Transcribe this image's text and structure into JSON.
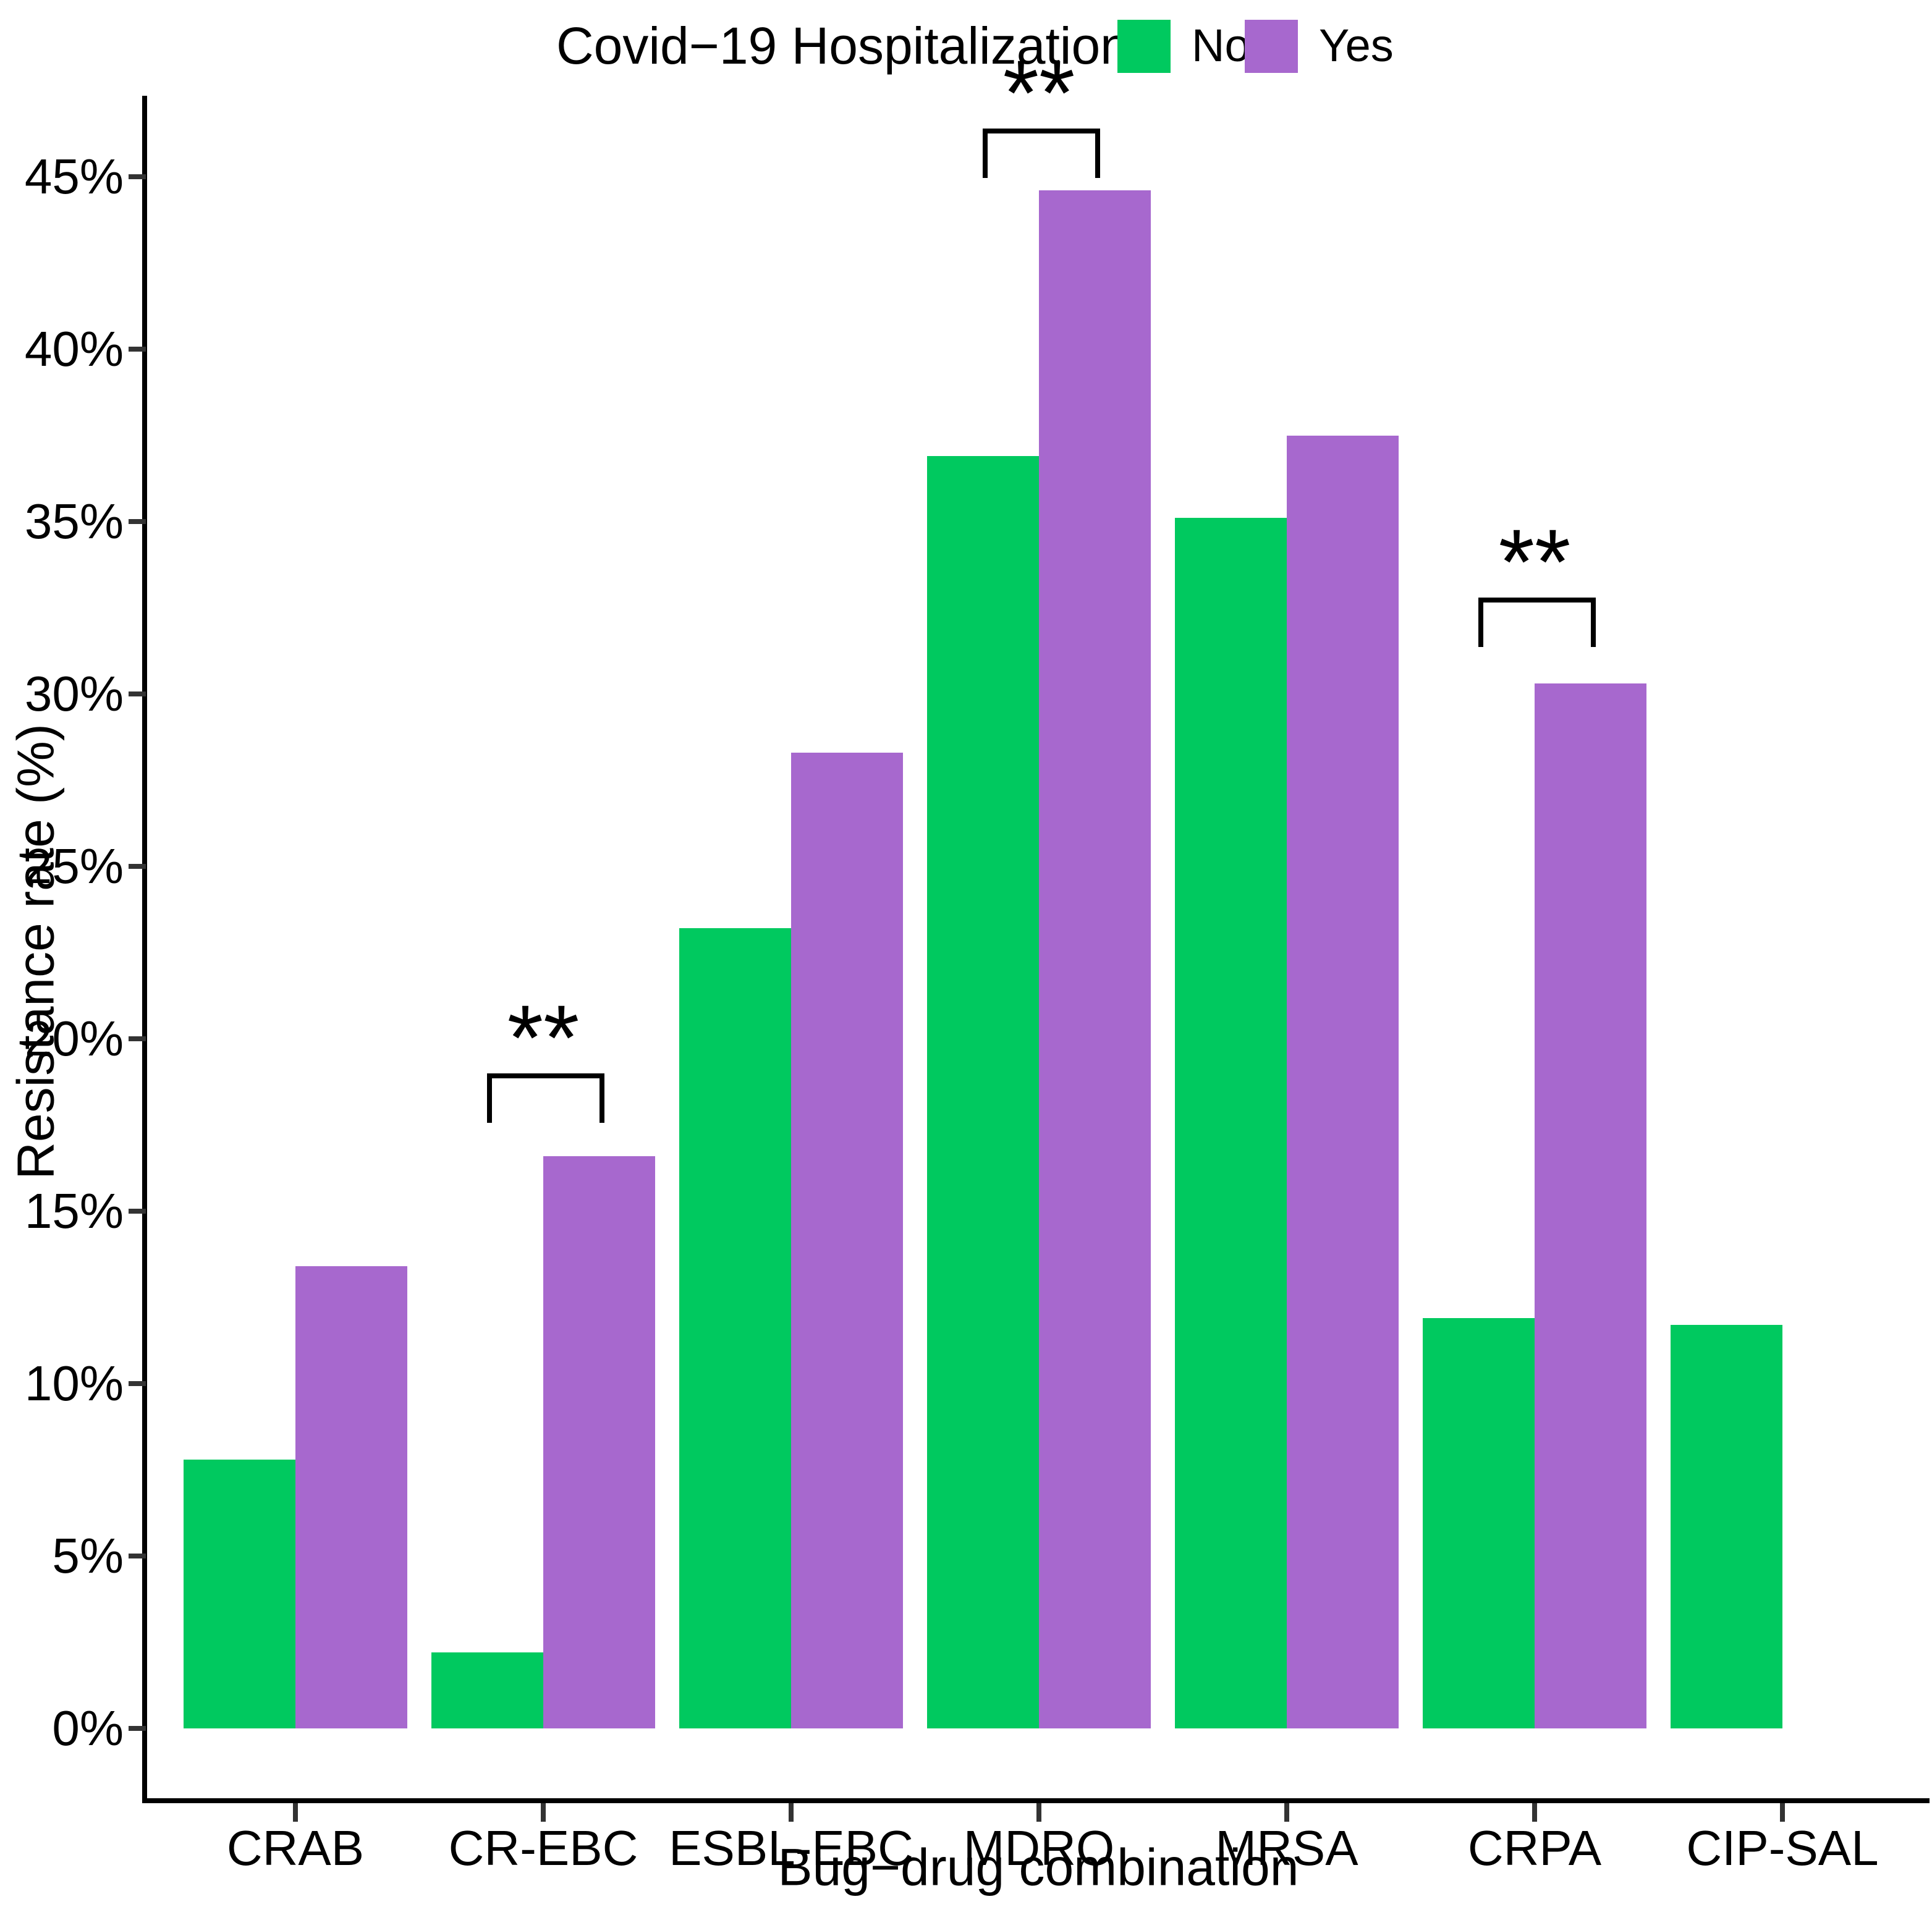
{
  "legend": {
    "title": "Covid−19 Hospitalization",
    "items": [
      {
        "label": "No",
        "color": "#00C95F"
      },
      {
        "label": "Yes",
        "color": "#A768CE"
      }
    ]
  },
  "axes": {
    "y_title": "Resistance rate (%)",
    "x_title": "Bug−drug combination",
    "y_tick_labels": [
      "0%",
      "5%",
      "10%",
      "15%",
      "20%",
      "25%",
      "30%",
      "35%",
      "40%",
      "45%"
    ]
  },
  "chart_data": {
    "type": "bar",
    "title": "",
    "categories": [
      "CRAB",
      "CR-EBC",
      "ESBL-EBC",
      "MDRO",
      "MRSA",
      "CRPA",
      "CIP-SAL"
    ],
    "series": [
      {
        "name": "No",
        "color": "#00C95F",
        "values": [
          7.8,
          2.2,
          23.2,
          36.9,
          35.1,
          11.9,
          11.7
        ]
      },
      {
        "name": "Yes",
        "color": "#A768CE",
        "values": [
          13.4,
          16.6,
          28.3,
          44.6,
          37.5,
          30.3,
          null
        ]
      }
    ],
    "xlabel": "Bug−drug combination",
    "ylabel": "Resistance rate (%)",
    "ylim": [
      0,
      47
    ],
    "yticks": [
      0,
      5,
      10,
      15,
      20,
      25,
      30,
      35,
      40,
      45
    ],
    "grid": false,
    "legend_position": "top-center",
    "annotations": [
      {
        "category": "CR-EBC",
        "label": "**",
        "type": "significance-bracket",
        "bracket_top_pct": 19.0
      },
      {
        "category": "MDRO",
        "label": "**",
        "type": "significance-bracket",
        "bracket_top_pct": 46.4
      },
      {
        "category": "CRPA",
        "label": "**",
        "type": "significance-bracket",
        "bracket_top_pct": 32.8
      }
    ]
  }
}
